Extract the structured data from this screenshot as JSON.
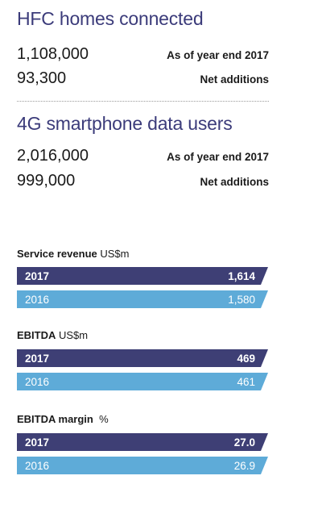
{
  "hfc": {
    "title": "HFC homes connected",
    "rows": [
      {
        "value": "1,108,000",
        "label": "As of year end 2017"
      },
      {
        "value": "93,300",
        "label": "Net additions"
      }
    ]
  },
  "smartphone": {
    "title": "4G smartphone data users",
    "rows": [
      {
        "value": "2,016,000",
        "label": "As of year end 2017"
      },
      {
        "value": "999,000",
        "label": "Net additions"
      }
    ]
  },
  "service_revenue": {
    "title_bold": "Service revenue",
    "unit": " US$m",
    "bars": [
      {
        "year": "2017",
        "value": "1,614"
      },
      {
        "year": "2016",
        "value": "1,580"
      }
    ]
  },
  "ebitda": {
    "title_bold": "EBITDA",
    "unit": " US$m",
    "bars": [
      {
        "year": "2017",
        "value": "469"
      },
      {
        "year": "2016",
        "value": "461"
      }
    ]
  },
  "ebitda_margin": {
    "title_bold": "EBITDA margin",
    "unit": "  %",
    "bars": [
      {
        "year": "2017",
        "value": "27.0"
      },
      {
        "year": "2016",
        "value": "26.9"
      }
    ]
  },
  "colors": {
    "title": "#3b3b7a",
    "bar_current": "#3e3f75",
    "bar_previous": "#5eabd8"
  }
}
